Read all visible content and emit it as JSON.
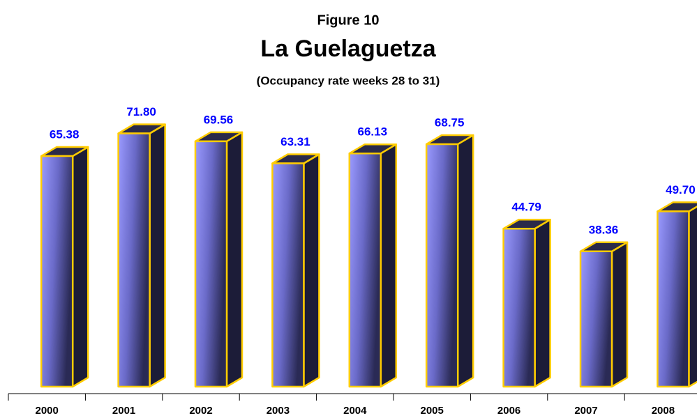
{
  "chart_data": {
    "type": "bar3d",
    "title": "Figure 10",
    "subtitle": "La Guelaguetza",
    "caption": "(Occupancy rate weeks 28 to 31)",
    "categories": [
      "2000",
      "2001",
      "2002",
      "2003",
      "2004",
      "2005",
      "2006",
      "2007",
      "2008"
    ],
    "values": [
      65.38,
      71.8,
      69.56,
      63.31,
      66.13,
      68.75,
      44.79,
      38.36,
      49.7
    ],
    "value_labels": [
      "65.38",
      "71.80",
      "69.56",
      "63.31",
      "66.13",
      "68.75",
      "44.79",
      "38.36",
      "49.70"
    ],
    "color": "#9a9aff",
    "edge_color": "#ffcc00",
    "label_color": "#0000ff",
    "ylim": [
      0,
      80
    ]
  }
}
